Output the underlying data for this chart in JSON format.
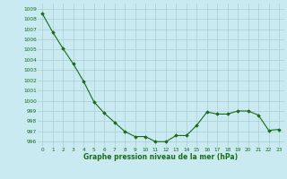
{
  "x": [
    0,
    1,
    2,
    3,
    4,
    5,
    6,
    7,
    8,
    9,
    10,
    11,
    12,
    13,
    14,
    15,
    16,
    17,
    18,
    19,
    20,
    21,
    22,
    23
  ],
  "y": [
    1008.5,
    1006.7,
    1005.1,
    1003.6,
    1001.9,
    999.9,
    998.8,
    997.9,
    997.0,
    996.5,
    996.5,
    996.0,
    996.0,
    996.6,
    996.6,
    997.6,
    998.9,
    998.7,
    998.7,
    999.0,
    999.0,
    998.6,
    997.1,
    997.2
  ],
  "line_color": "#1a6b1a",
  "marker_color": "#1a6b1a",
  "bg_color": "#c8eaf0",
  "grid_color": "#aaccd4",
  "text_color": "#1a6b1a",
  "xlabel": "Graphe pression niveau de la mer (hPa)",
  "ylim": [
    995.5,
    1009.5
  ],
  "yticks": [
    996,
    997,
    998,
    999,
    1000,
    1001,
    1002,
    1003,
    1004,
    1005,
    1006,
    1007,
    1008,
    1009
  ],
  "xlim": [
    -0.5,
    23.5
  ],
  "xticks": [
    0,
    1,
    2,
    3,
    4,
    5,
    6,
    7,
    8,
    9,
    10,
    11,
    12,
    13,
    14,
    15,
    16,
    17,
    18,
    19,
    20,
    21,
    22,
    23
  ]
}
